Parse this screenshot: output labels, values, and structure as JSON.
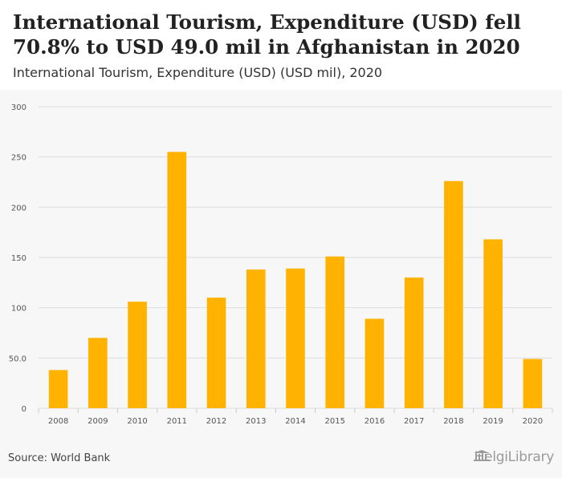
{
  "header": {
    "title": "International Tourism, Expenditure (USD) fell 70.8% to USD 49.0 mil in Afghanistan in 2020",
    "subtitle": "International Tourism, Expenditure (USD) (USD mil), 2020"
  },
  "footer": {
    "source": "Source: World Bank",
    "brand": "HelgiLibrary"
  },
  "colors": {
    "bar": "#FFB300",
    "grid": "#dddddd",
    "tick": "#555555"
  },
  "chart_data": {
    "type": "bar",
    "title": "International Tourism, Expenditure (USD) (USD mil), 2020",
    "xlabel": "",
    "ylabel": "",
    "categories": [
      "2008",
      "2009",
      "2010",
      "2011",
      "2012",
      "2013",
      "2014",
      "2015",
      "2016",
      "2017",
      "2018",
      "2019",
      "2020"
    ],
    "values": [
      38,
      70,
      106,
      255,
      110,
      138,
      139,
      151,
      89,
      130,
      226,
      168,
      49
    ],
    "ylim": [
      0,
      300
    ],
    "yticks": [
      0,
      50,
      100,
      150,
      200,
      250,
      300
    ],
    "ytick_labels": [
      "0",
      "50.0",
      "100",
      "150",
      "200",
      "250",
      "300"
    ],
    "grid": true,
    "legend": "none"
  }
}
